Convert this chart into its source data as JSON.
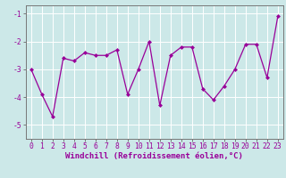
{
  "x": [
    0,
    1,
    2,
    3,
    4,
    5,
    6,
    7,
    8,
    9,
    10,
    11,
    12,
    13,
    14,
    15,
    16,
    17,
    18,
    19,
    20,
    21,
    22,
    23
  ],
  "y": [
    -3.0,
    -3.9,
    -4.7,
    -2.6,
    -2.7,
    -2.4,
    -2.5,
    -2.5,
    -2.3,
    -3.9,
    -3.0,
    -2.0,
    -4.3,
    -2.5,
    -2.2,
    -2.2,
    -3.7,
    -4.1,
    -3.6,
    -3.0,
    -2.1,
    -2.1,
    -3.3,
    -1.1
  ],
  "line_color": "#990099",
  "marker": "D",
  "marker_size": 2.0,
  "line_width": 0.9,
  "bg_color": "#cce8e8",
  "grid_color": "#ffffff",
  "xlabel": "Windchill (Refroidissement éolien,°C)",
  "xlabel_fontsize": 6.5,
  "xlabel_color": "#990099",
  "ytick_labels": [
    "-5",
    "-4",
    "-3",
    "-2",
    "-1"
  ],
  "yticks": [
    -5,
    -4,
    -3,
    -2,
    -1
  ],
  "xlim": [
    -0.5,
    23.5
  ],
  "ylim": [
    -5.5,
    -0.7
  ],
  "tick_fontsize": 5.8,
  "tick_color": "#990099",
  "spine_color": "#777777"
}
